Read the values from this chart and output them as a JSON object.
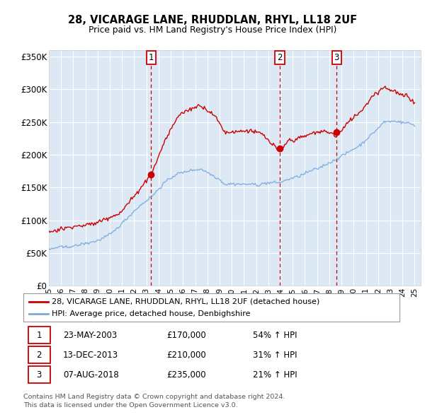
{
  "title": "28, VICARAGE LANE, RHUDDLAN, RHYL, LL18 2UF",
  "subtitle": "Price paid vs. HM Land Registry's House Price Index (HPI)",
  "plot_bg_color": "#dce9f5",
  "ylim": [
    0,
    360000
  ],
  "yticks": [
    0,
    50000,
    100000,
    150000,
    200000,
    250000,
    300000,
    350000
  ],
  "ytick_labels": [
    "£0",
    "£50K",
    "£100K",
    "£150K",
    "£200K",
    "£250K",
    "£300K",
    "£350K"
  ],
  "sales": [
    {
      "label": "1",
      "date": "23-MAY-2003",
      "price": 170000,
      "year": 2003.38
    },
    {
      "label": "2",
      "date": "13-DEC-2013",
      "price": 210000,
      "year": 2013.95
    },
    {
      "label": "3",
      "date": "07-AUG-2018",
      "price": 235000,
      "year": 2018.6
    }
  ],
  "legend_property": "28, VICARAGE LANE, RHUDDLAN, RHYL, LL18 2UF (detached house)",
  "legend_hpi": "HPI: Average price, detached house, Denbighshire",
  "footer_line1": "Contains HM Land Registry data © Crown copyright and database right 2024.",
  "footer_line2": "This data is licensed under the Open Government Licence v3.0.",
  "sale_color": "#cc0000",
  "hpi_color": "#7aaadd",
  "table_rows": [
    [
      "1",
      "23-MAY-2003",
      "£170,000",
      "54% ↑ HPI"
    ],
    [
      "2",
      "13-DEC-2013",
      "£210,000",
      "31% ↑ HPI"
    ],
    [
      "3",
      "07-AUG-2018",
      "£235,000",
      "21% ↑ HPI"
    ]
  ]
}
